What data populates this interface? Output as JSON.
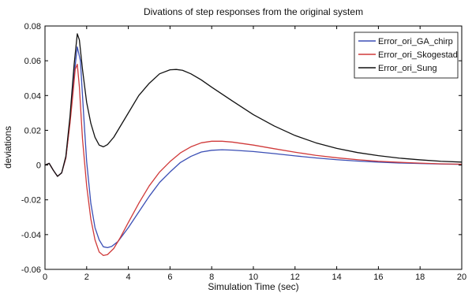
{
  "chart_data": {
    "type": "line",
    "title": "Divations of step responses from the original system",
    "xlabel": "Simulation Time (sec)",
    "ylabel": "deviations",
    "xlim": [
      0,
      20
    ],
    "ylim": [
      -0.06,
      0.08
    ],
    "xticks": [
      0,
      2,
      4,
      6,
      8,
      10,
      12,
      14,
      16,
      18,
      20
    ],
    "xtick_labels": [
      "0",
      "2",
      "4",
      "6",
      "8",
      "10",
      "12",
      "14",
      "16",
      "18",
      "20"
    ],
    "yticks": [
      -0.06,
      -0.04,
      -0.02,
      0,
      0.02,
      0.04,
      0.06,
      0.08
    ],
    "ytick_labels": [
      "-0.06",
      "-0.04",
      "-0.02",
      "0",
      "0.02",
      "0.04",
      "0.06",
      "0.08"
    ],
    "grid": false,
    "legend_position": "top-right",
    "series": [
      {
        "name": "Error_ori_GA_chirp",
        "color": "#3b4fb5",
        "points": [
          [
            0,
            0
          ],
          [
            0.2,
            0.001
          ],
          [
            0.4,
            -0.003
          ],
          [
            0.6,
            -0.0065
          ],
          [
            0.8,
            -0.0045
          ],
          [
            1.0,
            0.004
          ],
          [
            1.2,
            0.025
          ],
          [
            1.4,
            0.052
          ],
          [
            1.55,
            0.068
          ],
          [
            1.7,
            0.06
          ],
          [
            1.85,
            0.03
          ],
          [
            2.0,
            0.002
          ],
          [
            2.2,
            -0.022
          ],
          [
            2.4,
            -0.036
          ],
          [
            2.6,
            -0.043
          ],
          [
            2.8,
            -0.047
          ],
          [
            3.0,
            -0.0475
          ],
          [
            3.2,
            -0.0468
          ],
          [
            3.5,
            -0.044
          ],
          [
            4.0,
            -0.036
          ],
          [
            4.5,
            -0.027
          ],
          [
            5.0,
            -0.018
          ],
          [
            5.5,
            -0.01
          ],
          [
            6.0,
            -0.004
          ],
          [
            6.5,
            0.0015
          ],
          [
            7.0,
            0.005
          ],
          [
            7.5,
            0.0075
          ],
          [
            8.0,
            0.0085
          ],
          [
            8.5,
            0.0088
          ],
          [
            9.0,
            0.0086
          ],
          [
            10.0,
            0.0078
          ],
          [
            11.0,
            0.0066
          ],
          [
            12.0,
            0.0053
          ],
          [
            13.0,
            0.0041
          ],
          [
            14.0,
            0.0031
          ],
          [
            15.0,
            0.0023
          ],
          [
            16.0,
            0.0017
          ],
          [
            17.0,
            0.0012
          ],
          [
            18.0,
            0.0009
          ],
          [
            19.0,
            0.0006
          ],
          [
            20.0,
            0.0004
          ]
        ]
      },
      {
        "name": "Error_ori_Skogestad",
        "color": "#d03a3a",
        "points": [
          [
            0,
            0
          ],
          [
            0.2,
            0.001
          ],
          [
            0.4,
            -0.003
          ],
          [
            0.6,
            -0.0065
          ],
          [
            0.8,
            -0.0045
          ],
          [
            1.0,
            0.004
          ],
          [
            1.2,
            0.024
          ],
          [
            1.35,
            0.042
          ],
          [
            1.45,
            0.055
          ],
          [
            1.55,
            0.058
          ],
          [
            1.65,
            0.045
          ],
          [
            1.8,
            0.015
          ],
          [
            2.0,
            -0.012
          ],
          [
            2.2,
            -0.031
          ],
          [
            2.4,
            -0.043
          ],
          [
            2.6,
            -0.05
          ],
          [
            2.8,
            -0.052
          ],
          [
            3.0,
            -0.0515
          ],
          [
            3.3,
            -0.048
          ],
          [
            3.6,
            -0.042
          ],
          [
            4.0,
            -0.033
          ],
          [
            4.5,
            -0.022
          ],
          [
            5.0,
            -0.012
          ],
          [
            5.5,
            -0.004
          ],
          [
            6.0,
            0.002
          ],
          [
            6.5,
            0.007
          ],
          [
            7.0,
            0.0105
          ],
          [
            7.5,
            0.0128
          ],
          [
            8.0,
            0.0137
          ],
          [
            8.5,
            0.0137
          ],
          [
            9.0,
            0.0132
          ],
          [
            10.0,
            0.0115
          ],
          [
            11.0,
            0.0094
          ],
          [
            12.0,
            0.0074
          ],
          [
            13.0,
            0.0056
          ],
          [
            14.0,
            0.0042
          ],
          [
            15.0,
            0.0031
          ],
          [
            16.0,
            0.0022
          ],
          [
            17.0,
            0.0016
          ],
          [
            18.0,
            0.0011
          ],
          [
            19.0,
            0.0007
          ],
          [
            20.0,
            0.0005
          ]
        ]
      },
      {
        "name": "Error_ori_Sung",
        "color": "#111111",
        "points": [
          [
            0,
            0
          ],
          [
            0.2,
            0.001
          ],
          [
            0.4,
            -0.003
          ],
          [
            0.6,
            -0.0065
          ],
          [
            0.8,
            -0.0045
          ],
          [
            1.0,
            0.005
          ],
          [
            1.2,
            0.028
          ],
          [
            1.4,
            0.058
          ],
          [
            1.55,
            0.0755
          ],
          [
            1.65,
            0.072
          ],
          [
            1.8,
            0.055
          ],
          [
            2.0,
            0.036
          ],
          [
            2.2,
            0.024
          ],
          [
            2.4,
            0.016
          ],
          [
            2.6,
            0.0115
          ],
          [
            2.8,
            0.0105
          ],
          [
            3.0,
            0.0118
          ],
          [
            3.3,
            0.016
          ],
          [
            3.6,
            0.022
          ],
          [
            4.0,
            0.03
          ],
          [
            4.5,
            0.04
          ],
          [
            5.0,
            0.047
          ],
          [
            5.5,
            0.0525
          ],
          [
            6.0,
            0.0548
          ],
          [
            6.3,
            0.055
          ],
          [
            6.6,
            0.0545
          ],
          [
            7.0,
            0.0525
          ],
          [
            7.5,
            0.049
          ],
          [
            8.0,
            0.0448
          ],
          [
            9.0,
            0.0368
          ],
          [
            10.0,
            0.029
          ],
          [
            11.0,
            0.0225
          ],
          [
            12.0,
            0.017
          ],
          [
            13.0,
            0.0128
          ],
          [
            14.0,
            0.0096
          ],
          [
            15.0,
            0.0072
          ],
          [
            16.0,
            0.0054
          ],
          [
            17.0,
            0.004
          ],
          [
            18.0,
            0.003
          ],
          [
            19.0,
            0.0022
          ],
          [
            20.0,
            0.0017
          ]
        ]
      }
    ]
  }
}
